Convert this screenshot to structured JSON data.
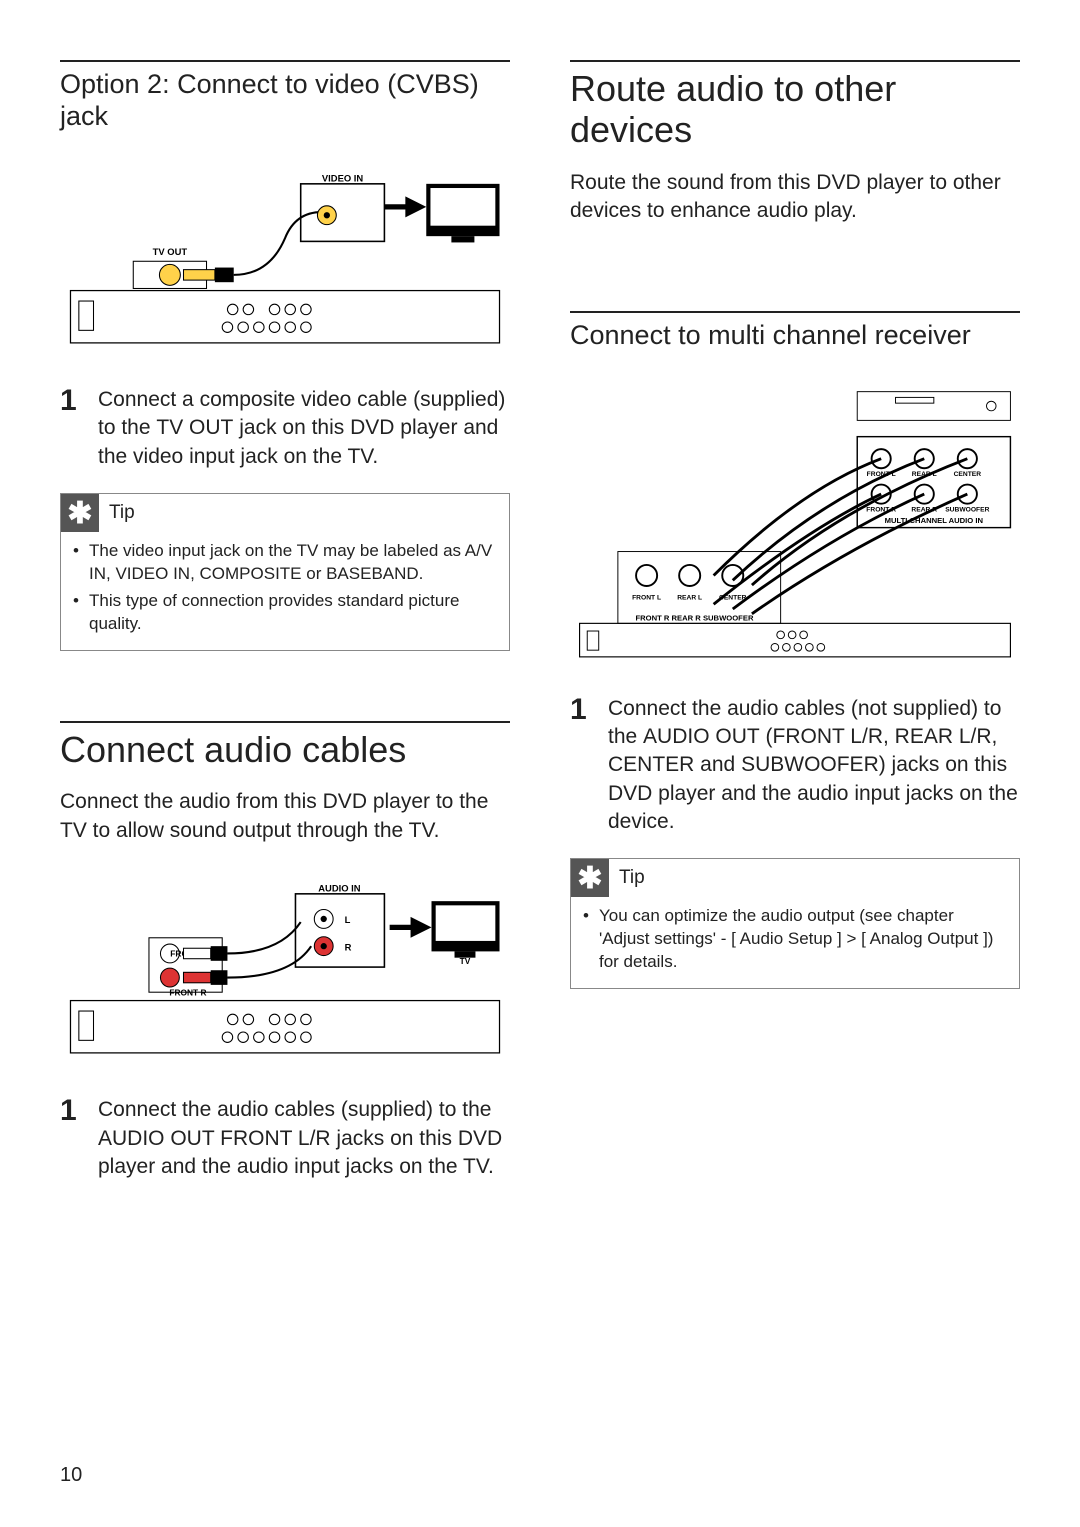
{
  "page_number": "10",
  "left": {
    "section1": {
      "heading": "Option 2: Connect to video (CVBS) jack",
      "diagram": {
        "labels": {
          "tv_out": "TV OUT",
          "video_in": "VIDEO IN",
          "tv": "TV"
        }
      },
      "step_num": "1",
      "step_html": "Connect a composite video cable (supplied) to the <span class='b'>TV OUT</span> jack on this DVD player and the video input jack on the TV.",
      "tip_label": "Tip",
      "tips": [
        "The video input jack on the TV may be labeled as A/V IN, VIDEO IN, COMPOSITE or BASEBAND.",
        "This type of connection provides standard picture quality."
      ]
    },
    "section2": {
      "heading": "Connect audio cables",
      "intro": "Connect the audio from this DVD player to the TV to allow sound output through the TV.",
      "diagram": {
        "labels": {
          "front_l": "FRONT L",
          "front_r": "FRONT R",
          "audio_in": "AUDIO IN",
          "l": "L",
          "r": "R",
          "tv": "TV"
        }
      },
      "step_num": "1",
      "step_html": "Connect the audio cables (supplied) to the <span class='b'>AUDIO OUT FRONT L/R</span> jacks on this DVD player and the audio input jacks on the TV."
    }
  },
  "right": {
    "section1": {
      "heading": "Route audio to other devices",
      "intro": "Route the sound from this DVD player to other devices to enhance audio play."
    },
    "section2": {
      "heading": "Connect to multi channel receiver",
      "diagram": {
        "labels": {
          "front_l": "FRONT L",
          "rear_l": "REAR L",
          "center": "CENTER",
          "front_r": "FRONT R",
          "rear_r": "REAR R",
          "subwoofer": "SUBWOOFER",
          "multi": "MULTI CHANNEL AUDIO IN",
          "bottom": "FRONT R   REAR R  SUBWOOFER",
          "plugs": "FRONT L   REAR L   CENTER"
        }
      },
      "step_num": "1",
      "step_html": "Connect the audio cables (not supplied) to the <span class='b'>AUDIO OUT</span> (<span class='b'>FRONT L/R</span>, <span class='b'>REAR L/R</span>, <span class='b'>CENTER</span> and <span class='b'>SUBWOOFER</span>) jacks on this DVD player and the audio input jacks on the device.",
      "tip_label": "Tip",
      "tip_html": "You can optimize the audio output (see chapter 'Adjust settings' - <span class='b'>[ Audio Setup ]</span> > <span class='b'>[ Analog Output ]</span>) for details."
    }
  }
}
